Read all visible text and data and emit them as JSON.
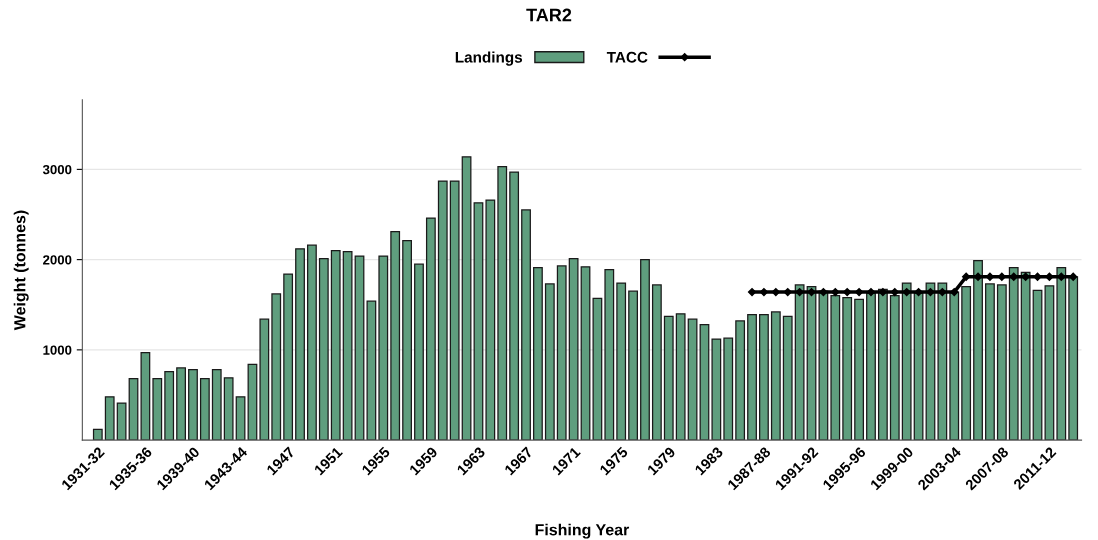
{
  "chart_data": {
    "type": "bar",
    "title": "TAR2",
    "xlabel": "Fishing Year",
    "ylabel": "Weight (tonnes)",
    "categories": [
      "1931-32",
      null,
      null,
      null,
      "1935-36",
      null,
      null,
      null,
      "1939-40",
      null,
      null,
      null,
      "1943-44",
      null,
      null,
      null,
      "1947",
      null,
      null,
      null,
      "1951",
      null,
      null,
      null,
      "1955",
      null,
      null,
      null,
      "1959",
      null,
      null,
      null,
      "1963",
      null,
      null,
      null,
      "1967",
      null,
      null,
      null,
      "1971",
      null,
      null,
      null,
      "1975",
      null,
      null,
      null,
      "1979",
      null,
      null,
      null,
      "1983",
      null,
      null,
      null,
      "1987-88",
      null,
      null,
      null,
      "1991-92",
      null,
      null,
      null,
      "1995-96",
      null,
      null,
      null,
      "1999-00",
      null,
      null,
      null,
      "2003-04",
      null,
      null,
      null,
      "2007-08",
      null,
      null,
      null,
      "2011-12",
      null,
      null
    ],
    "series": [
      {
        "name": "Landings",
        "color": "#5f9e7e",
        "values": [
          120,
          480,
          410,
          680,
          970,
          680,
          760,
          800,
          780,
          680,
          780,
          690,
          480,
          840,
          1340,
          1620,
          1840,
          2120,
          2160,
          2010,
          2100,
          2090,
          2040,
          1540,
          2040,
          2310,
          2210,
          1950,
          2460,
          2870,
          2870,
          3140,
          2630,
          2660,
          3030,
          2970,
          2550,
          1910,
          1730,
          1930,
          2010,
          1920,
          1570,
          1890,
          1740,
          1650,
          2000,
          1720,
          1370,
          1400,
          1340,
          1280,
          1120,
          1130,
          1320,
          1390,
          1390,
          1420,
          1370,
          1720,
          1700,
          1650,
          1600,
          1580,
          1560,
          1630,
          1670,
          1600,
          1740,
          1630,
          1740,
          1740,
          1640,
          1700,
          1990,
          1730,
          1720,
          1910,
          1860,
          1660,
          1710,
          1910,
          1810
        ]
      },
      {
        "name": "TACC",
        "type": "line",
        "color": "#000000",
        "marker": "diamond",
        "values": [
          null,
          null,
          null,
          null,
          null,
          null,
          null,
          null,
          null,
          null,
          null,
          null,
          null,
          null,
          null,
          null,
          null,
          null,
          null,
          null,
          null,
          null,
          null,
          null,
          null,
          null,
          null,
          null,
          null,
          null,
          null,
          null,
          null,
          null,
          null,
          null,
          null,
          null,
          null,
          null,
          null,
          null,
          null,
          null,
          null,
          null,
          null,
          null,
          null,
          null,
          null,
          null,
          null,
          null,
          null,
          1640,
          1640,
          1640,
          1640,
          1640,
          1640,
          1640,
          1640,
          1640,
          1640,
          1640,
          1640,
          1640,
          1640,
          1640,
          1640,
          1640,
          1640,
          1810,
          1810,
          1810,
          1810,
          1810,
          1810,
          1810,
          1810,
          1810,
          1810
        ]
      }
    ],
    "ylim": [
      0,
      3770
    ],
    "yticks": [
      1000,
      2000,
      3000
    ],
    "grid": "y",
    "legend": "top"
  }
}
